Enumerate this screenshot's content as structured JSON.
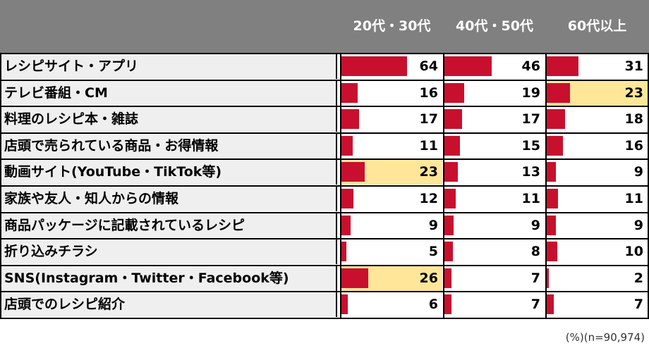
{
  "chart_data": {
    "type": "table",
    "columns": [
      "20代・30代",
      "40代・50代",
      "60代以上"
    ],
    "rows": [
      {
        "label": "レシピサイト・アプリ",
        "values": [
          64,
          46,
          31
        ],
        "highlight": [
          false,
          false,
          false
        ]
      },
      {
        "label": "テレビ番組・CM",
        "values": [
          16,
          19,
          23
        ],
        "highlight": [
          false,
          false,
          true
        ]
      },
      {
        "label": "料理のレシピ本・雑誌",
        "values": [
          17,
          17,
          18
        ],
        "highlight": [
          false,
          false,
          false
        ]
      },
      {
        "label": "店頭で売られている商品・お得情報",
        "values": [
          11,
          15,
          16
        ],
        "highlight": [
          false,
          false,
          false
        ]
      },
      {
        "label": "動画サイト(YouTube・TikTok等)",
        "values": [
          23,
          13,
          9
        ],
        "highlight": [
          true,
          false,
          false
        ]
      },
      {
        "label": "家族や友人・知人からの情報",
        "values": [
          12,
          11,
          11
        ],
        "highlight": [
          false,
          false,
          false
        ]
      },
      {
        "label": "商品パッケージに記載されているレシピ",
        "values": [
          9,
          9,
          9
        ],
        "highlight": [
          false,
          false,
          false
        ]
      },
      {
        "label": "折り込みチラシ",
        "values": [
          5,
          8,
          10
        ],
        "highlight": [
          false,
          false,
          false
        ]
      },
      {
        "label": "SNS(Instagram・Twitter・Facebook等)",
        "values": [
          26,
          7,
          2
        ],
        "highlight": [
          true,
          false,
          false
        ]
      },
      {
        "label": "店頭でのレシピ紹介",
        "values": [
          6,
          7,
          7
        ],
        "highlight": [
          false,
          false,
          false
        ]
      }
    ],
    "note": "(%)(n=90,974)",
    "bar_color": "#c8102e",
    "highlight_color": "#ffe699",
    "header_color": "#808080"
  }
}
